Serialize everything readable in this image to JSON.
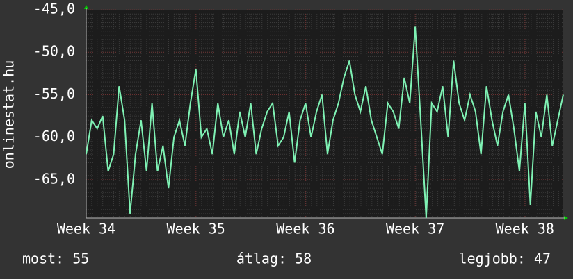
{
  "chart_data": {
    "type": "line",
    "y_label": "onlinestat.hu",
    "x": [
      34,
      34.05,
      34.1,
      34.15,
      34.2,
      34.25,
      34.3,
      34.35,
      34.4,
      34.45,
      34.5,
      34.55,
      34.6,
      34.65,
      34.7,
      34.75,
      34.8,
      34.85,
      34.9,
      34.95,
      35,
      35.05,
      35.1,
      35.15,
      35.2,
      35.25,
      35.3,
      35.35,
      35.4,
      35.45,
      35.5,
      35.55,
      35.6,
      35.65,
      35.7,
      35.75,
      35.8,
      35.85,
      35.9,
      35.95,
      36,
      36.05,
      36.1,
      36.15,
      36.2,
      36.25,
      36.3,
      36.35,
      36.4,
      36.45,
      36.5,
      36.55,
      36.6,
      36.65,
      36.7,
      36.75,
      36.8,
      36.85,
      36.9,
      36.95,
      37,
      37.05,
      37.1,
      37.15,
      37.2,
      37.25,
      37.3,
      37.35,
      37.4,
      37.45,
      37.5,
      37.55,
      37.6,
      37.65,
      37.7,
      37.75,
      37.8,
      37.85,
      37.9,
      37.95,
      38,
      38.05,
      38.1,
      38.15,
      38.2,
      38.25,
      38.3,
      38.35
    ],
    "series": [
      {
        "color": "#7ff2b4",
        "values": [
          -62,
          -58,
          -59,
          -57.5,
          -64,
          -62,
          -54,
          -58,
          -69,
          -62,
          -58,
          -64,
          -56,
          -64,
          -61,
          -66,
          -60,
          -58,
          -61,
          -56,
          -52,
          -60,
          -59,
          -62,
          -56,
          -60,
          -58,
          -62,
          -57,
          -60,
          -56,
          -62,
          -59,
          -57,
          -56,
          -61,
          -60,
          -57,
          -63,
          -58,
          -56,
          -60,
          -57,
          -55,
          -62,
          -58,
          -56,
          -53,
          -51,
          -55,
          -57,
          -54,
          -58,
          -60,
          -62,
          -56,
          -57,
          -59,
          -53,
          -56,
          -47,
          -58,
          -69.5,
          -56,
          -57,
          -54,
          -60,
          -51,
          -56,
          -58,
          -55,
          -57,
          -62,
          -54,
          -58,
          -61,
          -57,
          -55,
          -59,
          -64,
          -56,
          -68,
          -57,
          -60,
          -55,
          -61,
          -58,
          -55
        ]
      }
    ],
    "xlim": [
      34,
      38.35
    ],
    "xticks": [
      {
        "value": 34,
        "label": "Week 34"
      },
      {
        "value": 35,
        "label": "Week 35"
      },
      {
        "value": 36,
        "label": "Week 36"
      },
      {
        "value": 37,
        "label": "Week 37"
      },
      {
        "value": 38,
        "label": "Week 38"
      }
    ],
    "ylim": [
      -69.5,
      -45
    ],
    "yticks": [
      {
        "value": -45,
        "label": "-45,0"
      },
      {
        "value": -50,
        "label": "-50,0"
      },
      {
        "value": -55,
        "label": "-55,0"
      },
      {
        "value": -60,
        "label": "-60,0"
      },
      {
        "value": -65,
        "label": "-65,0"
      }
    ],
    "grid": true,
    "footer": [
      "most: 55",
      "átlag: 58",
      "legjobb: 47"
    ]
  }
}
